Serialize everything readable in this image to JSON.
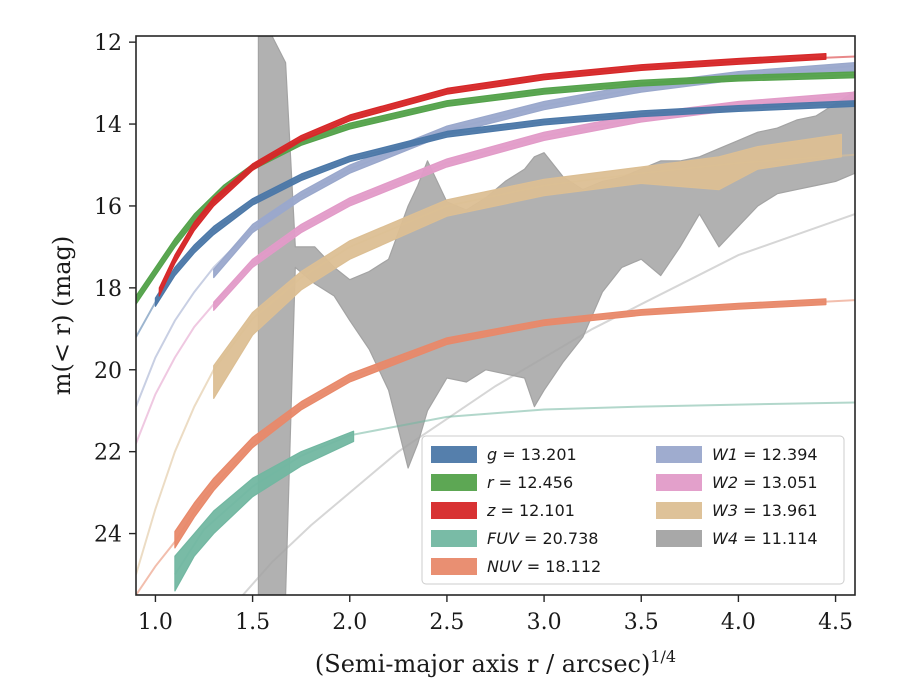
{
  "chart_data": {
    "type": "line",
    "title": "",
    "xlabel": "(Semi-major axis r / arcsec)",
    "xlabel_exponent": "1/4",
    "ylabel": "m(< r) (mag)",
    "xlim": [
      0.9,
      4.6
    ],
    "ylim": [
      25.5,
      11.85
    ],
    "y_inverted": true,
    "grid": false,
    "legend_placement": "lower-right",
    "x_ticks": [
      "1.0",
      "1.5",
      "2.0",
      "2.5",
      "3.0",
      "3.5",
      "4.0",
      "4.5"
    ],
    "x_tick_values": [
      1.0,
      1.5,
      2.0,
      2.5,
      3.0,
      3.5,
      4.0,
      4.5
    ],
    "y_ticks": [
      "12",
      "14",
      "16",
      "18",
      "20",
      "22",
      "24"
    ],
    "y_tick_values": [
      12,
      14,
      16,
      18,
      20,
      22,
      24
    ],
    "series": [
      {
        "name": "g = 13.201",
        "label_var": "g",
        "label_val": "13.201",
        "color": "#4c78a8",
        "model_x": [
          0.9,
          1.0,
          1.1,
          1.2,
          1.3,
          1.5,
          1.75,
          2.0,
          2.5,
          3.0,
          3.5,
          4.0,
          4.6
        ],
        "model_y": [
          19.2,
          18.35,
          17.6,
          17.05,
          16.6,
          15.9,
          15.3,
          14.85,
          14.25,
          13.95,
          13.75,
          13.62,
          13.5
        ],
        "data_x": [
          1.0,
          1.1,
          1.2,
          1.3,
          1.5,
          1.75,
          2.0,
          2.5,
          3.0,
          3.5,
          4.0,
          4.6
        ],
        "data_lo": [
          18.25,
          17.5,
          16.95,
          16.5,
          15.82,
          15.22,
          14.78,
          14.18,
          13.88,
          13.68,
          13.55,
          13.43
        ],
        "data_hi": [
          18.45,
          17.7,
          17.15,
          16.7,
          15.98,
          15.38,
          14.92,
          14.32,
          14.02,
          13.82,
          13.69,
          13.57
        ]
      },
      {
        "name": "r = 12.456",
        "label_var": "r",
        "label_val": "12.456",
        "color": "#54a24b",
        "model_x": [
          0.9,
          1.0,
          1.1,
          1.2,
          1.35,
          1.5,
          1.75,
          2.0,
          2.5,
          3.0,
          3.5,
          4.0,
          4.6
        ],
        "model_y": [
          18.3,
          17.6,
          16.9,
          16.3,
          15.6,
          15.05,
          14.45,
          14.05,
          13.5,
          13.2,
          13.0,
          12.88,
          12.8
        ],
        "data_x": [
          0.9,
          1.0,
          1.1,
          1.2,
          1.35,
          1.5,
          1.75,
          2.0,
          2.5,
          3.0,
          3.5,
          4.0,
          4.6
        ],
        "data_lo": [
          18.2,
          17.5,
          16.8,
          16.2,
          15.5,
          14.98,
          14.38,
          13.98,
          13.43,
          13.13,
          12.93,
          12.81,
          12.73
        ],
        "data_hi": [
          18.4,
          17.7,
          17.0,
          16.4,
          15.7,
          15.12,
          14.52,
          14.12,
          13.57,
          13.27,
          13.07,
          12.95,
          12.87
        ]
      },
      {
        "name": "z = 12.101",
        "label_var": "z",
        "label_val": "12.101",
        "color": "#d62728",
        "model_x": [
          1.02,
          1.1,
          1.2,
          1.3,
          1.5,
          1.75,
          2.0,
          2.5,
          3.0,
          3.5,
          4.0,
          4.6
        ],
        "model_y": [
          18.1,
          17.3,
          16.5,
          15.9,
          15.05,
          14.35,
          13.85,
          13.2,
          12.85,
          12.62,
          12.47,
          12.35
        ],
        "data_x": [
          1.02,
          1.1,
          1.2,
          1.3,
          1.5,
          1.75,
          2.0,
          2.5,
          3.0,
          3.5,
          4.0,
          4.45
        ],
        "data_lo": [
          18.0,
          17.2,
          16.4,
          15.8,
          14.97,
          14.28,
          13.78,
          13.13,
          12.78,
          12.55,
          12.4,
          12.28
        ],
        "data_hi": [
          18.2,
          17.4,
          16.6,
          16.0,
          15.13,
          14.42,
          13.92,
          13.27,
          12.92,
          12.69,
          12.54,
          12.42
        ]
      },
      {
        "name": "FUV = 20.738",
        "label_var": "FUV",
        "label_val": "20.738",
        "color": "#72b7a1",
        "model_x": [
          1.1,
          1.25,
          1.5,
          1.75,
          2.0,
          2.5,
          3.0,
          3.5,
          4.0,
          4.6
        ],
        "model_y": [
          25.0,
          23.9,
          22.85,
          22.1,
          21.6,
          21.15,
          20.97,
          20.9,
          20.85,
          20.8
        ],
        "data_x": [
          1.1,
          1.2,
          1.3,
          1.5,
          1.75,
          2.02
        ],
        "data_lo": [
          24.55,
          24.0,
          23.45,
          22.65,
          22.0,
          21.5
        ],
        "data_hi": [
          25.4,
          24.55,
          24.0,
          23.1,
          22.35,
          21.75
        ]
      },
      {
        "name": "NUV = 18.112",
        "label_var": "NUV",
        "label_val": "18.112",
        "color": "#e8896a",
        "model_x": [
          0.9,
          1.0,
          1.1,
          1.25,
          1.5,
          1.75,
          2.0,
          2.5,
          3.0,
          3.5,
          4.0,
          4.6
        ],
        "model_y": [
          25.5,
          24.8,
          24.2,
          23.1,
          21.8,
          20.9,
          20.2,
          19.3,
          18.85,
          18.6,
          18.45,
          18.3
        ],
        "data_x": [
          1.1,
          1.2,
          1.3,
          1.5,
          1.75,
          2.0,
          2.5,
          3.0,
          3.5,
          4.0,
          4.45
        ],
        "data_lo": [
          23.95,
          23.25,
          22.65,
          21.65,
          20.78,
          20.1,
          19.22,
          18.78,
          18.53,
          18.38,
          18.27
        ],
        "data_hi": [
          24.35,
          23.6,
          22.95,
          21.9,
          20.98,
          20.3,
          19.38,
          18.92,
          18.67,
          18.52,
          18.41
        ]
      },
      {
        "name": "W1 = 12.394",
        "label_var": "W1",
        "label_val": "12.394",
        "color": "#9aa8cc",
        "model_x": [
          0.9,
          1.0,
          1.1,
          1.2,
          1.3,
          1.5,
          1.75,
          2.0,
          2.5,
          3.0,
          3.5,
          4.0,
          4.6
        ],
        "model_y": [
          20.9,
          19.7,
          18.8,
          18.1,
          17.5,
          16.55,
          15.75,
          15.1,
          14.15,
          13.55,
          13.12,
          12.82,
          12.58
        ],
        "data_x": [
          1.3,
          1.5,
          1.75,
          2.0,
          2.5,
          3.0,
          3.5,
          4.0,
          4.6
        ],
        "data_lo": [
          17.55,
          16.45,
          15.65,
          15.0,
          14.05,
          13.45,
          13.02,
          12.72,
          12.5
        ],
        "data_hi": [
          17.75,
          16.65,
          15.85,
          15.2,
          14.25,
          13.65,
          13.22,
          12.92,
          12.7
        ]
      },
      {
        "name": "W2 = 13.051",
        "label_var": "W2",
        "label_val": "13.051",
        "color": "#e29bc8",
        "model_x": [
          0.9,
          1.0,
          1.1,
          1.2,
          1.3,
          1.5,
          1.75,
          2.0,
          2.5,
          3.0,
          3.5,
          4.0,
          4.6
        ],
        "model_y": [
          21.8,
          20.6,
          19.7,
          18.95,
          18.4,
          17.4,
          16.55,
          15.9,
          14.95,
          14.3,
          13.85,
          13.55,
          13.3
        ],
        "data_x": [
          1.3,
          1.5,
          1.75,
          2.0,
          2.5,
          3.0,
          3.5,
          4.0,
          4.6
        ],
        "data_lo": [
          18.35,
          17.3,
          16.45,
          15.8,
          14.85,
          14.2,
          13.75,
          13.45,
          13.22
        ],
        "data_hi": [
          18.55,
          17.5,
          16.65,
          16.0,
          15.05,
          14.4,
          13.95,
          13.65,
          13.42
        ]
      },
      {
        "name": "W3 = 13.961",
        "label_var": "W3",
        "label_val": "13.961",
        "color": "#dcbf94",
        "model_x": [
          0.9,
          1.0,
          1.1,
          1.2,
          1.3,
          1.5,
          1.75,
          2.0,
          2.5,
          3.0,
          3.5,
          4.0,
          4.6
        ],
        "model_y": [
          25.0,
          23.4,
          22.0,
          20.9,
          20.0,
          18.75,
          17.75,
          17.0,
          16.0,
          15.5,
          15.2,
          14.95,
          14.75
        ],
        "data_x": [
          1.3,
          1.5,
          1.75,
          2.0,
          2.5,
          3.0,
          3.5,
          3.9,
          4.1,
          4.53
        ],
        "data_lo": [
          19.9,
          18.6,
          17.6,
          16.85,
          15.85,
          15.35,
          15.05,
          14.8,
          14.55,
          14.25
        ],
        "data_hi": [
          20.7,
          19.15,
          18.05,
          17.3,
          16.25,
          15.75,
          15.45,
          15.6,
          15.1,
          14.8
        ]
      },
      {
        "name": "W4 = 11.114",
        "label_var": "W4",
        "label_val": "11.114",
        "color": "#a3a3a3",
        "model_x": [
          1.45,
          1.6,
          1.8,
          2.0,
          2.25,
          2.5,
          2.75,
          3.0,
          3.25,
          3.5,
          3.75,
          4.0,
          4.3,
          4.6
        ],
        "model_y": [
          25.5,
          24.7,
          23.8,
          23.0,
          22.0,
          21.2,
          20.4,
          19.7,
          19.0,
          18.4,
          17.8,
          17.2,
          16.7,
          16.2
        ],
        "data_x": [
          1.53,
          1.6,
          1.67,
          1.72,
          1.82,
          1.92,
          2.0,
          2.1,
          2.2,
          2.3,
          2.35,
          2.4,
          2.5,
          2.6,
          2.7,
          2.8,
          2.9,
          2.95,
          3.0,
          3.1,
          3.2,
          3.3,
          3.4,
          3.5,
          3.6,
          3.7,
          3.8,
          3.9,
          4.0,
          4.1,
          4.2,
          4.3,
          4.4,
          4.5,
          4.6
        ],
        "data_lo": [
          25.5,
          25.5,
          25.5,
          17.5,
          17.9,
          18.2,
          18.8,
          19.5,
          20.5,
          22.4,
          21.8,
          21.0,
          20.2,
          20.3,
          20.0,
          20.1,
          20.2,
          20.9,
          20.5,
          19.8,
          19.2,
          18.1,
          17.5,
          17.3,
          17.7,
          17.0,
          16.2,
          17.0,
          16.5,
          16.0,
          15.7,
          15.6,
          15.5,
          15.4,
          15.2
        ],
        "data_hi": [
          11.85,
          11.85,
          12.5,
          17.0,
          17.0,
          17.5,
          17.8,
          17.6,
          17.3,
          16.0,
          15.5,
          14.9,
          15.9,
          16.1,
          15.8,
          15.4,
          15.1,
          14.8,
          14.7,
          15.3,
          15.6,
          15.4,
          15.3,
          15.1,
          14.9,
          14.9,
          14.8,
          14.6,
          14.4,
          14.2,
          14.1,
          13.9,
          13.8,
          13.5,
          13.2
        ]
      }
    ]
  }
}
